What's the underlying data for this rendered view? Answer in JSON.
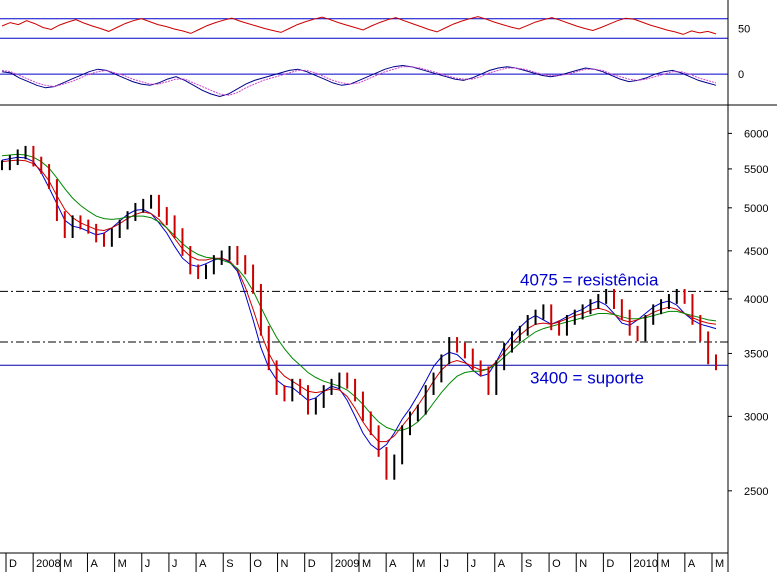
{
  "chart_data": [
    {
      "type": "line",
      "panel": "oscillator-top",
      "ylim": [
        0,
        100
      ],
      "y_ticks": [
        "50"
      ],
      "reference_levels": [
        70,
        30
      ],
      "series": [
        {
          "values": [
            55,
            62,
            58,
            66,
            60,
            52,
            48,
            57,
            63,
            68,
            61,
            55,
            50,
            44,
            52,
            60,
            66,
            70,
            64,
            58,
            54,
            49,
            45,
            40,
            48,
            56,
            62,
            67,
            71,
            65,
            60,
            55,
            50,
            46,
            42,
            50,
            58,
            64,
            69,
            73,
            68,
            62,
            57,
            52,
            47,
            55,
            62,
            68,
            72,
            66,
            60,
            54,
            48,
            43,
            51,
            59,
            65,
            70,
            74,
            69,
            63,
            58,
            53,
            49,
            56,
            63,
            68,
            72,
            67,
            61,
            55,
            50,
            46,
            52,
            59,
            66,
            71,
            69,
            63,
            57,
            52,
            47,
            43,
            38,
            45,
            41,
            44,
            39
          ]
        }
      ]
    },
    {
      "type": "line",
      "panel": "oscillator-middle",
      "y_ticks": [
        "0"
      ],
      "reference_levels": [
        0
      ],
      "series": [
        {
          "values": [
            0.2,
            0.1,
            -0.3,
            -0.6,
            -0.9,
            -1.1,
            -1.0,
            -0.7,
            -0.4,
            -0.1,
            0.2,
            0.4,
            0.3,
            0.0,
            -0.3,
            -0.6,
            -0.8,
            -0.9,
            -0.7,
            -0.4,
            -0.2,
            -0.5,
            -0.9,
            -1.3,
            -1.6,
            -1.8,
            -1.6,
            -1.2,
            -0.8,
            -0.5,
            -0.3,
            -0.1,
            0.1,
            0.3,
            0.4,
            0.2,
            -0.1,
            -0.4,
            -0.7,
            -0.9,
            -0.8,
            -0.5,
            -0.2,
            0.1,
            0.4,
            0.6,
            0.7,
            0.6,
            0.4,
            0.2,
            0.0,
            -0.2,
            -0.4,
            -0.5,
            -0.3,
            0.0,
            0.3,
            0.5,
            0.6,
            0.5,
            0.3,
            0.1,
            -0.1,
            -0.2,
            -0.1,
            0.1,
            0.3,
            0.5,
            0.4,
            0.2,
            -0.1,
            -0.4,
            -0.6,
            -0.5,
            -0.3,
            0.0,
            0.2,
            0.3,
            0.1,
            -0.2,
            -0.5,
            -0.7,
            -0.9
          ]
        },
        {
          "values": [
            0.3,
            0.2,
            -0.1,
            -0.4,
            -0.7,
            -0.9,
            -1.0,
            -0.8,
            -0.6,
            -0.3,
            0.0,
            0.2,
            0.3,
            0.1,
            -0.1,
            -0.4,
            -0.6,
            -0.8,
            -0.8,
            -0.6,
            -0.4,
            -0.4,
            -0.7,
            -1.0,
            -1.3,
            -1.6,
            -1.7,
            -1.5,
            -1.1,
            -0.8,
            -0.5,
            -0.3,
            -0.1,
            0.1,
            0.3,
            0.3,
            0.1,
            -0.2,
            -0.5,
            -0.7,
            -0.8,
            -0.7,
            -0.4,
            -0.1,
            0.2,
            0.4,
            0.6,
            0.6,
            0.5,
            0.3,
            0.1,
            -0.1,
            -0.3,
            -0.4,
            -0.4,
            -0.2,
            0.1,
            0.3,
            0.5,
            0.5,
            0.4,
            0.2,
            0.0,
            -0.1,
            -0.1,
            0.0,
            0.2,
            0.4,
            0.4,
            0.3,
            0.0,
            -0.2,
            -0.4,
            -0.5,
            -0.4,
            -0.2,
            0.0,
            0.2,
            0.2,
            0.0,
            -0.3,
            -0.5,
            -0.7
          ]
        }
      ]
    },
    {
      "type": "line",
      "panel": "price",
      "scale": "log",
      "ylim": [
        2200,
        6200
      ],
      "y_ticks": [
        6000,
        5500,
        5000,
        4500,
        4000,
        3500,
        3000,
        2500
      ],
      "x_labels": [
        "D",
        "2008",
        "M",
        "A",
        "M",
        "J",
        "J",
        "A",
        "S",
        "O",
        "N",
        "D",
        "2009",
        "M",
        "A",
        "M",
        "J",
        "J",
        "A",
        "S",
        "O",
        "N",
        "D",
        "2010",
        "M",
        "A",
        "M"
      ],
      "price": {
        "values": [
          5550,
          5620,
          5700,
          5750,
          5600,
          5500,
          5300,
          4900,
          4700,
          4850,
          4800,
          4750,
          4650,
          4600,
          4700,
          4800,
          4900,
          5000,
          5050,
          5100,
          4950,
          4850,
          4700,
          4500,
          4300,
          4250,
          4300,
          4400,
          4450,
          4500,
          4400,
          4300,
          4100,
          3700,
          3400,
          3200,
          3150,
          3250,
          3200,
          3050,
          3100,
          3200,
          3250,
          3300,
          3250,
          3150,
          3000,
          2900,
          2750,
          2600,
          2700,
          2900,
          3000,
          3050,
          3200,
          3300,
          3450,
          3600,
          3550,
          3500,
          3400,
          3350,
          3200,
          3400,
          3550,
          3650,
          3700,
          3800,
          3850,
          3900,
          3750,
          3700,
          3800,
          3850,
          3900,
          3950,
          4000,
          4050,
          3950,
          3850,
          3700,
          3650,
          3800,
          3900,
          3950,
          4000,
          4050,
          4000,
          3800,
          3650,
          3450,
          3400
        ]
      },
      "moving_averages": [
        {
          "color": "#0000cc",
          "values": [
            5620,
            5640,
            5660,
            5650,
            5600,
            5450,
            5250,
            5050,
            4850,
            4780,
            4760,
            4720,
            4680,
            4700,
            4760,
            4840,
            4920,
            4970,
            4980,
            4930,
            4820,
            4700,
            4550,
            4420,
            4350,
            4330,
            4360,
            4400,
            4420,
            4380,
            4280,
            4050,
            3800,
            3550,
            3380,
            3280,
            3230,
            3220,
            3170,
            3120,
            3140,
            3190,
            3230,
            3210,
            3120,
            3000,
            2880,
            2800,
            2760,
            2800,
            2880,
            2980,
            3060,
            3160,
            3270,
            3390,
            3470,
            3510,
            3490,
            3430,
            3360,
            3310,
            3330,
            3430,
            3560,
            3650,
            3730,
            3800,
            3840,
            3800,
            3760,
            3790,
            3830,
            3870,
            3900,
            3950,
            3980,
            3940,
            3860,
            3770,
            3750,
            3800,
            3860,
            3920,
            3960,
            3980,
            3940,
            3860,
            3800,
            3760,
            3740,
            3720
          ]
        },
        {
          "color": "#cc0000",
          "values": [
            5600,
            5610,
            5620,
            5610,
            5570,
            5480,
            5340,
            5150,
            4980,
            4880,
            4820,
            4780,
            4740,
            4730,
            4760,
            4810,
            4870,
            4920,
            4950,
            4930,
            4860,
            4760,
            4640,
            4520,
            4440,
            4400,
            4400,
            4420,
            4420,
            4390,
            4300,
            4120,
            3900,
            3680,
            3500,
            3380,
            3310,
            3270,
            3230,
            3190,
            3180,
            3190,
            3210,
            3200,
            3150,
            3060,
            2960,
            2880,
            2820,
            2820,
            2860,
            2930,
            3000,
            3080,
            3170,
            3270,
            3360,
            3420,
            3440,
            3420,
            3390,
            3360,
            3370,
            3430,
            3510,
            3590,
            3660,
            3720,
            3760,
            3770,
            3760,
            3780,
            3810,
            3840,
            3860,
            3890,
            3910,
            3890,
            3850,
            3800,
            3780,
            3800,
            3830,
            3870,
            3900,
            3920,
            3900,
            3860,
            3820,
            3790,
            3770,
            3760
          ]
        },
        {
          "color": "#008800",
          "values": [
            5680,
            5690,
            5700,
            5690,
            5660,
            5600,
            5510,
            5380,
            5240,
            5120,
            5030,
            4960,
            4900,
            4870,
            4860,
            4870,
            4890,
            4900,
            4900,
            4880,
            4830,
            4760,
            4670,
            4580,
            4510,
            4460,
            4430,
            4420,
            4400,
            4370,
            4310,
            4210,
            4080,
            3920,
            3770,
            3640,
            3540,
            3460,
            3400,
            3340,
            3300,
            3270,
            3250,
            3230,
            3200,
            3150,
            3090,
            3020,
            2960,
            2920,
            2900,
            2900,
            2920,
            2960,
            3020,
            3100,
            3180,
            3250,
            3310,
            3340,
            3350,
            3350,
            3370,
            3410,
            3470,
            3530,
            3590,
            3640,
            3690,
            3720,
            3740,
            3760,
            3780,
            3800,
            3820,
            3840,
            3860,
            3860,
            3850,
            3830,
            3810,
            3810,
            3820,
            3840,
            3860,
            3880,
            3880,
            3860,
            3840,
            3820,
            3800,
            3790
          ]
        }
      ],
      "horizontal_levels": [
        4075,
        3600,
        3400
      ],
      "annotations": [
        {
          "text": "4075 = resistência",
          "value": 4075
        },
        {
          "text": "3400 = suporte",
          "value": 3400
        }
      ]
    }
  ]
}
